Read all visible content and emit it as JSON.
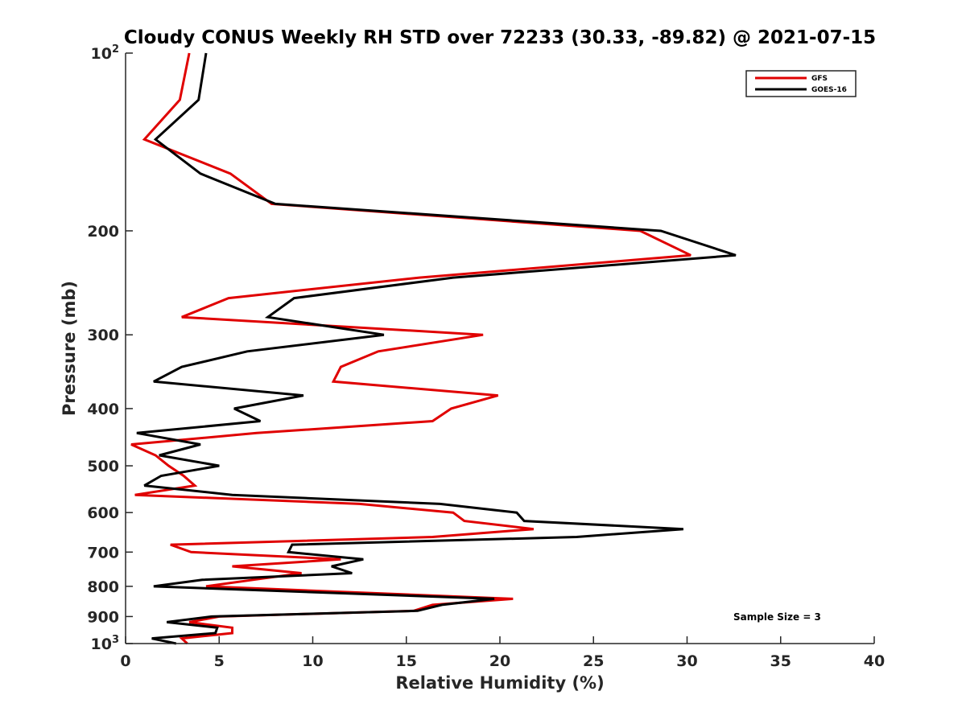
{
  "chart_data": {
    "type": "line",
    "title": "Cloudy CONUS Weekly RH STD over 72233 (30.33, -89.82) @ 2021-07-15",
    "xlabel": "Relative Humidity (%)",
    "ylabel": "Pressure (mb)",
    "xlim": [
      0,
      40
    ],
    "ylim": [
      100,
      1000
    ],
    "yscale": "log",
    "y_reversed": true,
    "grid": false,
    "legend_position": "top-right",
    "x_ticks": [
      0,
      5,
      10,
      15,
      20,
      25,
      30,
      35,
      40
    ],
    "x_tick_labels": [
      "0",
      "5",
      "10",
      "15",
      "20",
      "25",
      "30",
      "35",
      "40"
    ],
    "y_ticks": [
      100,
      200,
      300,
      400,
      500,
      600,
      700,
      800,
      900,
      1000
    ],
    "y_tick_labels": [
      {
        "base": "10",
        "sup": "2"
      },
      {
        "base": "200",
        "sup": ""
      },
      {
        "base": "300",
        "sup": ""
      },
      {
        "base": "400",
        "sup": ""
      },
      {
        "base": "500",
        "sup": ""
      },
      {
        "base": "600",
        "sup": ""
      },
      {
        "base": "700",
        "sup": ""
      },
      {
        "base": "800",
        "sup": ""
      },
      {
        "base": "900",
        "sup": ""
      },
      {
        "base": "10",
        "sup": "3"
      }
    ],
    "annotation": "Sample Size = 3",
    "series": [
      {
        "name": "GFS",
        "color": "#e00000",
        "pressure": [
          100,
          120,
          140,
          160,
          180,
          200,
          220,
          240,
          260,
          280,
          300,
          320,
          340,
          360,
          380,
          400,
          420,
          440,
          460,
          480,
          500,
          520,
          540,
          560,
          580,
          600,
          620,
          640,
          660,
          680,
          700,
          720,
          740,
          760,
          780,
          800,
          840,
          860,
          880,
          900,
          920,
          940,
          960,
          980,
          1000
        ],
        "rh": [
          3.4,
          2.9,
          1.0,
          5.6,
          7.8,
          27.5,
          30.2,
          15.7,
          5.5,
          3.0,
          19.1,
          13.5,
          11.5,
          11.1,
          19.9,
          17.4,
          16.4,
          7.0,
          0.3,
          1.6,
          2.3,
          3.1,
          3.7,
          0.5,
          12.5,
          17.5,
          18.1,
          21.8,
          16.4,
          2.4,
          3.5,
          11.5,
          5.7,
          9.4,
          6.8,
          4.3,
          20.7,
          16.4,
          15.4,
          5.0,
          3.4,
          5.7,
          5.7,
          3.0,
          3.3
        ]
      },
      {
        "name": "GOES-16",
        "color": "#000000",
        "pressure": [
          100,
          120,
          140,
          160,
          180,
          200,
          220,
          240,
          260,
          280,
          300,
          320,
          340,
          360,
          380,
          400,
          420,
          440,
          460,
          480,
          500,
          520,
          540,
          560,
          580,
          600,
          620,
          640,
          660,
          680,
          700,
          720,
          740,
          760,
          780,
          800,
          840,
          860,
          880,
          900,
          920,
          940,
          960,
          980,
          1000
        ],
        "rh": [
          4.3,
          3.9,
          1.6,
          4.0,
          8.0,
          28.6,
          32.6,
          17.5,
          9.0,
          7.6,
          13.8,
          6.5,
          3.0,
          1.5,
          9.5,
          5.8,
          7.2,
          0.6,
          4.0,
          1.8,
          5.0,
          1.9,
          1.0,
          5.7,
          16.8,
          20.9,
          21.3,
          29.8,
          24.1,
          8.9,
          8.7,
          12.7,
          11.0,
          12.1,
          4.1,
          1.5,
          19.7,
          16.9,
          15.6,
          4.6,
          2.2,
          4.9,
          4.8,
          1.4,
          2.7
        ]
      }
    ]
  }
}
